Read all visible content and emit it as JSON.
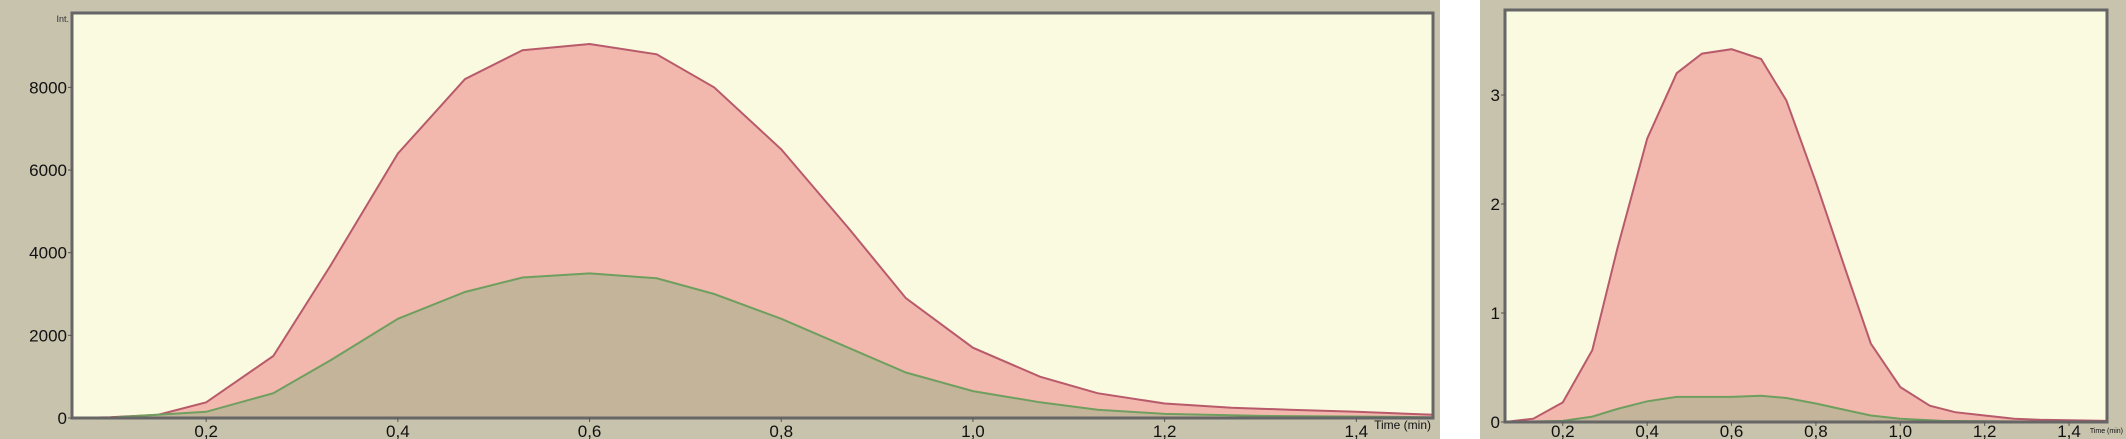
{
  "colors": {
    "frame": "#c7c3ad",
    "plot_bg": "#fafae0",
    "series1_fill": "#f2b8ae",
    "series1_line": "#b85a6a",
    "series2_fill": "#c4b59a",
    "series2_line": "#6f9f5f"
  },
  "chart_data": [
    {
      "type": "area",
      "ylabel": "Int.",
      "xlabel": "Time (min)",
      "xlim": [
        0.06,
        1.48
      ],
      "ylim": [
        0,
        9800
      ],
      "xticks": [
        "0,2",
        "0,4",
        "0,6",
        "0,8",
        "1,0",
        "1,2",
        "1,4"
      ],
      "xtick_values": [
        0.2,
        0.4,
        0.6,
        0.8,
        1.0,
        1.2,
        1.4
      ],
      "yticks": [
        "0",
        "2000",
        "4000",
        "6000",
        "8000"
      ],
      "ytick_values": [
        0,
        2000,
        4000,
        6000,
        8000
      ],
      "grid": false,
      "series": [
        {
          "x": [
            0.06,
            0.1,
            0.15,
            0.2,
            0.27,
            0.33,
            0.4,
            0.47,
            0.53,
            0.6,
            0.67,
            0.73,
            0.8,
            0.87,
            0.93,
            1.0,
            1.07,
            1.13,
            1.2,
            1.27,
            1.33,
            1.4,
            1.48
          ],
          "y": [
            0,
            20,
            80,
            380,
            1500,
            3700,
            6400,
            8200,
            8900,
            9050,
            8800,
            8000,
            6500,
            4600,
            2900,
            1700,
            1000,
            600,
            350,
            250,
            200,
            150,
            80
          ]
        },
        {
          "x": [
            0.06,
            0.1,
            0.2,
            0.27,
            0.33,
            0.4,
            0.47,
            0.53,
            0.6,
            0.67,
            0.73,
            0.8,
            0.87,
            0.93,
            1.0,
            1.07,
            1.13,
            1.2,
            1.3,
            1.48
          ],
          "y": [
            0,
            10,
            150,
            600,
            1400,
            2400,
            3050,
            3400,
            3500,
            3380,
            3000,
            2400,
            1700,
            1100,
            650,
            380,
            200,
            100,
            50,
            20
          ]
        }
      ]
    },
    {
      "type": "area",
      "xlabel": "Time (min)",
      "xlim": [
        0.063,
        1.49
      ],
      "ylim": [
        0,
        3.78
      ],
      "xticks": [
        "0,2",
        "0,4",
        "0,6",
        "0,8",
        "1,0",
        "1,2",
        "1,4"
      ],
      "xtick_values": [
        0.2,
        0.4,
        0.6,
        0.8,
        1.0,
        1.2,
        1.4
      ],
      "yticks": [
        "0",
        "1",
        "2",
        "3"
      ],
      "ytick_values": [
        0,
        1,
        2,
        3
      ],
      "grid": false,
      "series": [
        {
          "x": [
            0.063,
            0.13,
            0.2,
            0.27,
            0.33,
            0.4,
            0.47,
            0.53,
            0.6,
            0.67,
            0.73,
            0.8,
            0.87,
            0.93,
            1.0,
            1.07,
            1.13,
            1.2,
            1.27,
            1.33,
            1.49
          ],
          "y": [
            0,
            0.03,
            0.18,
            0.66,
            1.6,
            2.6,
            3.2,
            3.38,
            3.42,
            3.33,
            2.95,
            2.2,
            1.4,
            0.72,
            0.32,
            0.15,
            0.09,
            0.06,
            0.03,
            0.02,
            0.01
          ]
        },
        {
          "x": [
            0.063,
            0.2,
            0.27,
            0.33,
            0.4,
            0.47,
            0.53,
            0.6,
            0.67,
            0.73,
            0.8,
            0.87,
            0.93,
            1.0,
            1.1,
            1.49
          ],
          "y": [
            0,
            0.01,
            0.05,
            0.12,
            0.19,
            0.23,
            0.23,
            0.23,
            0.24,
            0.22,
            0.17,
            0.11,
            0.06,
            0.03,
            0.01,
            0
          ]
        }
      ]
    }
  ]
}
